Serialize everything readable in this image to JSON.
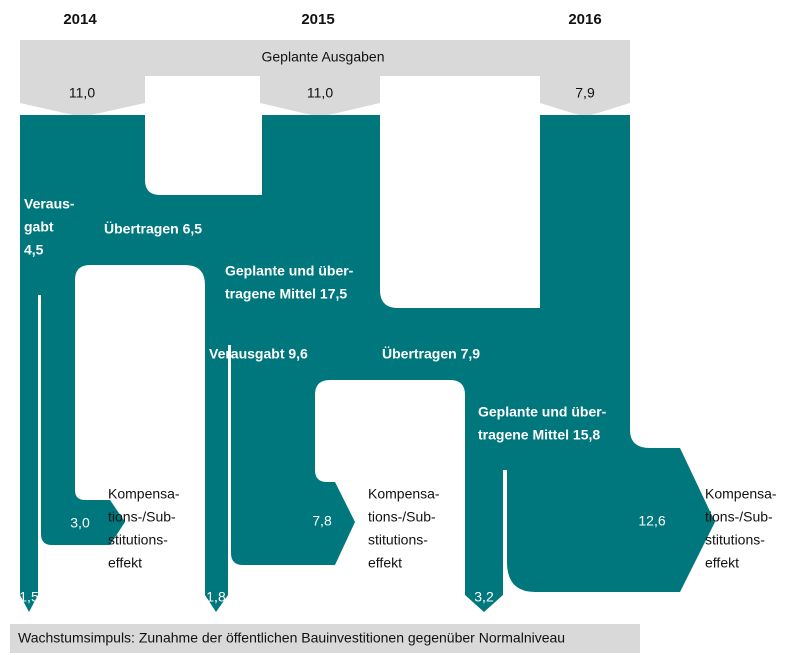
{
  "years": [
    "2014",
    "2015",
    "2016"
  ],
  "planned": {
    "label": "Geplante Ausgaben",
    "values": [
      "11,0",
      "11,0",
      "7,9"
    ]
  },
  "flows": {
    "spent_2014": [
      "Veraus-",
      "gabt",
      "4,5"
    ],
    "carried_2014": "Übertragen 6,5",
    "total_2015": [
      "Geplante und über-",
      "tragene Mittel 17,5"
    ],
    "spent_2015": "Verausgabt 9,6",
    "carried_2015": "Übertragen 7,9",
    "total_2016": [
      "Geplante und über-",
      "tragene Mittel 15,8"
    ]
  },
  "outputs": {
    "impulse": [
      "1,5",
      "1,8",
      "3,2"
    ],
    "compensation": [
      "3,0",
      "7,8",
      "12,6"
    ],
    "compensation_label": [
      "Kompensa-",
      "tions-/Sub-",
      "stitutions-",
      "effekt"
    ]
  },
  "footer": "Wachstumsimpuls: Zunahme der öffentlichen Bauinvestitionen gegenüber Normalniveau"
}
